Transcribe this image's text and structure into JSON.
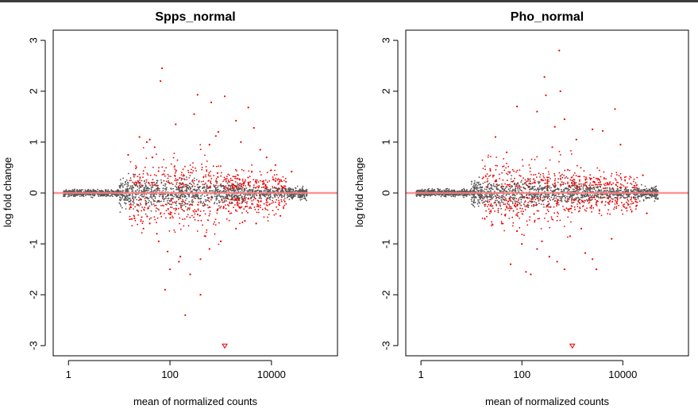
{
  "colors": {
    "nonsig": "#555555",
    "sig": "#ee0000",
    "zero_line": "#ff8080",
    "top_bar": "#3c3c3c"
  },
  "chart_data": [
    {
      "type": "scatter",
      "title": "Spps_normal",
      "xlabel": "mean of normalized counts",
      "ylabel": "log fold change",
      "x_scale": "log10",
      "xlim": [
        0.5,
        200000
      ],
      "ylim": [
        -3.2,
        3.2
      ],
      "x_ticks": [
        1,
        100,
        10000
      ],
      "x_tick_labels": [
        "1",
        "100",
        "10000"
      ],
      "y_ticks": [
        -3,
        -2,
        -1,
        0,
        1,
        2,
        3
      ],
      "y_tick_labels": [
        "-3",
        "-2",
        "-1",
        "0",
        "1",
        "2",
        "3"
      ],
      "series": [
        {
          "points": [
            [
              70,
              2.45
            ],
            [
              65,
              2.2
            ],
            [
              350,
              1.93
            ],
            [
              650,
              1.78
            ],
            [
              1200,
              1.9
            ],
            [
              3500,
              1.68
            ],
            [
              2000,
              1.42
            ],
            [
              4500,
              1.28
            ],
            [
              25,
              1.1
            ],
            [
              40,
              1.05
            ],
            [
              50,
              0.9
            ],
            [
              15,
              0.75
            ],
            [
              45,
              0.7
            ],
            [
              35,
              1.0
            ],
            [
              300,
              1.55
            ],
            [
              900,
              1.2
            ],
            [
              600,
              0.95
            ],
            [
              2500,
              1.0
            ],
            [
              6000,
              0.85
            ],
            [
              800,
              1.12
            ],
            [
              20,
              -0.5
            ],
            [
              30,
              -0.7
            ],
            [
              60,
              -0.95
            ],
            [
              100,
              -1.5
            ],
            [
              150,
              -1.35
            ],
            [
              250,
              -1.6
            ],
            [
              400,
              -1.3
            ],
            [
              600,
              -1.1
            ],
            [
              1000,
              -0.95
            ],
            [
              80,
              -1.9
            ],
            [
              400,
              -2.0
            ],
            [
              200,
              -2.4
            ],
            [
              1200,
              -3.0
            ],
            [
              55,
              -0.8
            ],
            [
              2000,
              -0.7
            ],
            [
              3000,
              -0.55
            ],
            [
              40,
              -0.6
            ],
            [
              90,
              -1.15
            ],
            [
              500,
              -0.85
            ],
            [
              15000,
              -0.45
            ],
            [
              25000,
              0.42
            ],
            [
              8000,
              0.7
            ],
            [
              5000,
              -0.6
            ],
            [
              12000,
              0.55
            ],
            [
              130,
              1.35
            ],
            [
              160,
              -1.25
            ]
          ]
        }
      ]
    },
    {
      "type": "scatter",
      "title": "Pho_normal",
      "xlabel": "mean of normalized counts",
      "ylabel": "log fold change",
      "x_scale": "log10",
      "xlim": [
        0.5,
        200000
      ],
      "ylim": [
        -3.2,
        3.2
      ],
      "x_ticks": [
        1,
        100,
        10000
      ],
      "x_tick_labels": [
        "1",
        "100",
        "10000"
      ],
      "y_ticks": [
        -3,
        -2,
        -1,
        0,
        1,
        2,
        3
      ],
      "y_tick_labels": [
        "-3",
        "-2",
        "-1",
        "0",
        "1",
        "2",
        "3"
      ],
      "series": [
        {
          "points": [
            [
              550,
              2.8
            ],
            [
              280,
              2.28
            ],
            [
              580,
              2.0
            ],
            [
              300,
              1.92
            ],
            [
              7000,
              1.65
            ],
            [
              80,
              1.7
            ],
            [
              200,
              1.6
            ],
            [
              700,
              1.45
            ],
            [
              2500,
              1.25
            ],
            [
              4000,
              1.22
            ],
            [
              9000,
              0.95
            ],
            [
              450,
              1.3
            ],
            [
              1200,
              1.05
            ],
            [
              30,
              1.1
            ],
            [
              50,
              0.8
            ],
            [
              400,
              0.9
            ],
            [
              60,
              -1.4
            ],
            [
              120,
              -1.55
            ],
            [
              200,
              -1.1
            ],
            [
              350,
              -1.25
            ],
            [
              500,
              -1.35
            ],
            [
              700,
              -1.5
            ],
            [
              2500,
              -1.3
            ],
            [
              3000,
              -1.5
            ],
            [
              6000,
              -0.9
            ],
            [
              100,
              -1.0
            ],
            [
              80,
              -0.75
            ],
            [
              40,
              -0.6
            ],
            [
              900,
              -0.85
            ],
            [
              1500,
              -0.7
            ],
            [
              1000,
              -3.0
            ],
            [
              25000,
              0.35
            ],
            [
              30000,
              -0.4
            ],
            [
              150,
              -1.6
            ],
            [
              250,
              -0.95
            ],
            [
              1800,
              -1.18
            ]
          ]
        }
      ]
    }
  ]
}
